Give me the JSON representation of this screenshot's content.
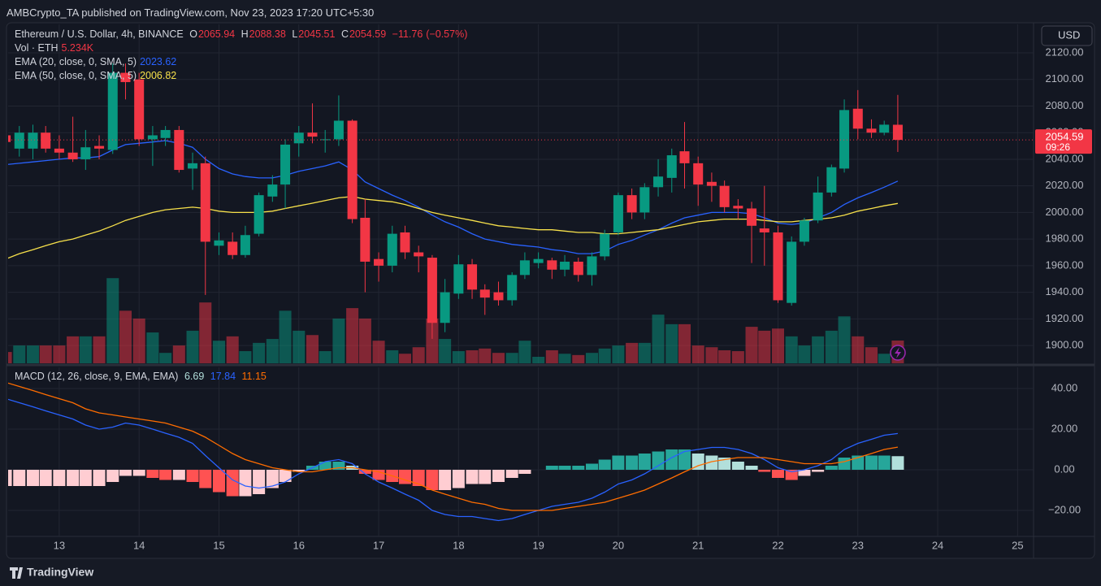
{
  "header": {
    "publisher": "AMBCrypto_TA published on TradingView.com, Nov 23, 2023 17:20 UTC+5:30",
    "currency": "USD",
    "logo": "TradingView"
  },
  "chart_data": {
    "type": "candlestick",
    "title": "Ethereum / U.S. Dollar, 4h, BINANCE",
    "ohlc_letters": [
      "O",
      "H",
      "L",
      "C"
    ],
    "change": {
      "value": -11.76,
      "label": "−11.76"
    },
    "change_pct": {
      "value": -0.57,
      "label": "(−0.57%)"
    },
    "countdown": "09:26",
    "up_color": "#089981",
    "down_color": "#f23645",
    "grid": true,
    "x": [
      12.33,
      12.5,
      12.67,
      12.83,
      13,
      13.17,
      13.33,
      13.5,
      13.67,
      13.83,
      14,
      14.17,
      14.33,
      14.5,
      14.67,
      14.83,
      15,
      15.17,
      15.33,
      15.5,
      15.67,
      15.83,
      16,
      16.17,
      16.33,
      16.5,
      16.67,
      16.83,
      17,
      17.17,
      17.33,
      17.5,
      17.67,
      17.83,
      18,
      18.17,
      18.33,
      18.5,
      18.67,
      18.83,
      19,
      19.17,
      19.33,
      19.5,
      19.67,
      19.83,
      20,
      20.17,
      20.33,
      20.5,
      20.67,
      20.83,
      21,
      21.17,
      21.33,
      21.5,
      21.67,
      21.83,
      22,
      22.17,
      22.33,
      22.5,
      22.67,
      22.83,
      23,
      23.17,
      23.33,
      23.5
    ],
    "xlim": [
      12.36,
      25.2
    ],
    "xticks": [
      13,
      14,
      15,
      16,
      17,
      18,
      19,
      20,
      21,
      22,
      23,
      24,
      25
    ],
    "open": [
      2058,
      2048,
      2048,
      2060,
      2048,
      2045,
      2040,
      2050,
      2047,
      2105,
      2100,
      2055,
      2056,
      2062,
      2033,
      2037,
      1975,
      1978,
      1968,
      1984,
      2012,
      2021,
      2052,
      2060,
      2055,
      2055,
      2069,
      1996,
      1965,
      1960,
      1985,
      1970,
      1966,
      1917,
      1939,
      1961,
      1942,
      1940,
      1934,
      1953,
      1962,
      1964,
      1957,
      1963,
      1953,
      1967,
      1985,
      2013,
      2000,
      2019,
      2026,
      2046,
      2037,
      2023,
      2020,
      2005,
      2003,
      1988,
      1985,
      1932,
      1978,
      1994,
      2015,
      2033,
      2078,
      2063,
      2060,
      2065.94
    ],
    "high": [
      2060,
      2065,
      2066,
      2065,
      2058,
      2072,
      2062,
      2058,
      2112,
      2112,
      2105,
      2065,
      2065,
      2065,
      2045,
      2042,
      1985,
      1985,
      1990,
      2015,
      2028,
      2055,
      2065,
      2082,
      2062,
      2088,
      2070,
      2010,
      1970,
      1990,
      1990,
      1975,
      1968,
      1950,
      1968,
      1965,
      1946,
      1948,
      1955,
      1970,
      1970,
      1966,
      1968,
      1966,
      1970,
      1987,
      2015,
      2018,
      2022,
      2040,
      2048,
      2068,
      2042,
      2030,
      2024,
      2010,
      2008,
      2020,
      1990,
      1982,
      1996,
      2027,
      2036,
      2085,
      2092,
      2070,
      2069,
      2088.38
    ],
    "low": [
      2048,
      2042,
      2040,
      2045,
      2040,
      2038,
      2032,
      2040,
      2044,
      2085,
      2050,
      2035,
      2050,
      2030,
      2017,
      1938,
      1968,
      1965,
      1966,
      1982,
      2008,
      2003,
      2042,
      2052,
      2045,
      2050,
      1992,
      1940,
      1948,
      1955,
      1965,
      1955,
      1905,
      1910,
      1935,
      1935,
      1923,
      1930,
      1930,
      1950,
      1958,
      1950,
      1952,
      1948,
      1945,
      1964,
      1983,
      1995,
      1995,
      2012,
      2015,
      2018,
      2005,
      2008,
      2000,
      1995,
      1962,
      1960,
      1932,
      1930,
      1975,
      1992,
      2012,
      2030,
      2055,
      2056,
      2058,
      2045.51
    ],
    "close": [
      2053,
      2060,
      2060,
      2048,
      2045,
      2040,
      2049,
      2048,
      2105,
      2098,
      2055,
      2058,
      2062,
      2032,
      2037,
      1978,
      1979,
      1968,
      1983,
      2013,
      2021,
      2051,
      2060,
      2057,
      2055,
      2069,
      1995,
      1963,
      1960,
      1984,
      1970,
      1967,
      1917,
      1940,
      1961,
      1942,
      1936,
      1934,
      1953,
      1964,
      1965,
      1957,
      1963,
      1953,
      1967,
      1984,
      2013,
      2000,
      2019,
      2027,
      2043,
      2037,
      2021,
      2020,
      2004,
      2003,
      1990,
      1985,
      1934,
      1978,
      1994,
      2015,
      2034,
      2077,
      2063,
      2060,
      2066,
      2054.59
    ],
    "ylim": [
      1886.6,
      2141.4
    ],
    "yticks": [
      {
        "value": 1900,
        "label": "1900.00"
      },
      {
        "value": 1920,
        "label": "1920.00"
      },
      {
        "value": 1940,
        "label": "1940.00"
      },
      {
        "value": 1960,
        "label": "1960.00"
      },
      {
        "value": 1980,
        "label": "1980.00"
      },
      {
        "value": 2000,
        "label": "2000.00"
      },
      {
        "value": 2020,
        "label": "2020.00"
      },
      {
        "value": 2040,
        "label": "2040.00"
      },
      {
        "value": 2060,
        "label": "2060.00"
      },
      {
        "value": 2080,
        "label": "2080.00"
      },
      {
        "value": 2100,
        "label": "2100.00"
      },
      {
        "value": 2120,
        "label": "2120.00"
      }
    ],
    "volume": {
      "name": "Vol · ETH",
      "last_label": "5.234K",
      "vlim": [
        0,
        78
      ],
      "values": [
        2.6,
        4.1,
        4.1,
        4.1,
        4.1,
        6.2,
        6.2,
        6.2,
        19.6,
        12.1,
        10.3,
        7.1,
        2.4,
        4.1,
        7.5,
        14.0,
        5.2,
        6.2,
        2.8,
        4.7,
        5.6,
        12.1,
        7.5,
        6.5,
        2.8,
        10.3,
        12.7,
        10.3,
        5.2,
        3.0,
        2.2,
        3.7,
        10.3,
        5.6,
        2.8,
        3.0,
        3.4,
        2.4,
        2.4,
        5.2,
        1.5,
        3.0,
        2.2,
        1.9,
        2.4,
        3.4,
        4.1,
        4.7,
        4.7,
        11.2,
        9.0,
        9.0,
        4.1,
        3.7,
        3.0,
        2.8,
        8.4,
        7.5,
        8.0,
        6.2,
        4.1,
        6.2,
        7.5,
        10.8,
        6.2,
        3.7,
        2.2,
        5.234
      ]
    },
    "ema": [
      {
        "name": "EMA (20, close, 0, SMA, 5)",
        "color": "#2962ff",
        "values": [
          2036,
          2037,
          2038,
          2039,
          2040,
          2041,
          2041,
          2042,
          2047,
          2051,
          2052,
          2053,
          2054,
          2052,
          2049,
          2040,
          2033,
          2029,
          2027,
          2026,
          2026,
          2028,
          2031,
          2033,
          2035,
          2038,
          2032,
          2023,
          2018,
          2013,
          2009,
          2004,
          1998,
          1993,
          1989,
          1984,
          1980,
          1978,
          1976,
          1975,
          1974,
          1972,
          1971,
          1969,
          1969,
          1971,
          1976,
          1979,
          1983,
          1987,
          1992,
          1996,
          1998,
          2000,
          2000,
          2000,
          1999,
          1996,
          1992,
          1991,
          1992,
          1996,
          2000,
          2006,
          2011,
          2015,
          2019,
          2023.62
        ]
      },
      {
        "name": "EMA (50, close, 0, SMA, 5)",
        "color": "#f7e14b",
        "values": [
          1965,
          1969,
          1972,
          1975,
          1978,
          1980,
          1983,
          1986,
          1990,
          1994,
          1997,
          2000,
          2002,
          2003,
          2004,
          2003,
          2001,
          2000,
          2000,
          2000,
          2001,
          2003,
          2005,
          2007,
          2009,
          2011,
          2012,
          2010,
          2009,
          2008,
          2006,
          2003,
          2000,
          1998,
          1996,
          1994,
          1992,
          1990,
          1989,
          1988,
          1987,
          1987,
          1986,
          1985,
          1985,
          1984,
          1984,
          1985,
          1986,
          1987,
          1989,
          1991,
          1993,
          1994,
          1995,
          1995,
          1995,
          1994,
          1993,
          1993,
          1994,
          1995,
          1996,
          1998,
          2001,
          2003,
          2005,
          2006.82
        ]
      }
    ],
    "macd": {
      "name": "MACD (12, 26, close, 9, EMA, EMA)",
      "histogram": [
        -8,
        -8,
        -8,
        -8,
        -8,
        -8,
        -8,
        -8,
        -6,
        -3,
        -3,
        -4,
        -5,
        -5,
        -6,
        -9,
        -11,
        -13,
        -13,
        -12,
        -9,
        -6,
        -1,
        2,
        4,
        4,
        2,
        -2,
        -5,
        -6,
        -7,
        -8,
        -10,
        -10,
        -9,
        -7,
        -7,
        -6,
        -4,
        -2,
        0,
        2,
        2,
        2,
        3,
        5,
        7,
        7,
        8,
        9,
        10,
        10,
        8,
        7,
        6,
        4,
        2,
        -1,
        -4,
        -5,
        -3,
        -1,
        2,
        6,
        7,
        7,
        7,
        6.69
      ],
      "hist_colors": {
        "up_rising": "#26a69a",
        "up_falling": "#b2dfdb",
        "down_falling": "#ff5252",
        "down_rising": "#ffcdd2"
      },
      "macd": {
        "color": "#2962ff",
        "values": [
          35,
          33,
          31,
          29,
          27,
          25,
          22,
          20,
          21,
          23,
          22,
          20,
          18,
          16,
          13,
          7,
          1,
          -5,
          -8,
          -9,
          -8,
          -6,
          -2,
          1,
          4,
          5,
          3,
          -2,
          -6,
          -9,
          -12,
          -15,
          -20,
          -22,
          -23,
          -23,
          -24,
          -25,
          -24,
          -22,
          -20,
          -18,
          -17,
          -16,
          -14,
          -11,
          -7,
          -5,
          -2,
          2,
          6,
          9,
          10,
          11,
          11,
          10,
          8,
          5,
          1,
          -1,
          0,
          2,
          5,
          10,
          13,
          15,
          17,
          17.84
        ]
      },
      "signal": {
        "color": "#ff6d00",
        "values": [
          43,
          41,
          39,
          37,
          35,
          33,
          30,
          28,
          27,
          26,
          25,
          24,
          23,
          21,
          19,
          16,
          12,
          8,
          5,
          3,
          1,
          0,
          -1,
          -1,
          0,
          1,
          1,
          0,
          -1,
          -3,
          -5,
          -7,
          -10,
          -12,
          -14,
          -16,
          -17,
          -19,
          -20,
          -20,
          -20,
          -20,
          -19,
          -18,
          -17,
          -16,
          -14,
          -12,
          -10,
          -7,
          -4,
          -1,
          2,
          4,
          5,
          6,
          6,
          6,
          5,
          4,
          3,
          3,
          3,
          4,
          6,
          8,
          10,
          11.15
        ]
      },
      "ylim": [
        -32.8,
        50.4
      ],
      "yticks": [
        {
          "value": 40,
          "label": "40.00"
        },
        {
          "value": 20,
          "label": "20.00"
        },
        {
          "value": 0,
          "label": "0.00"
        },
        {
          "value": -20,
          "label": "−20.00"
        }
      ]
    }
  }
}
